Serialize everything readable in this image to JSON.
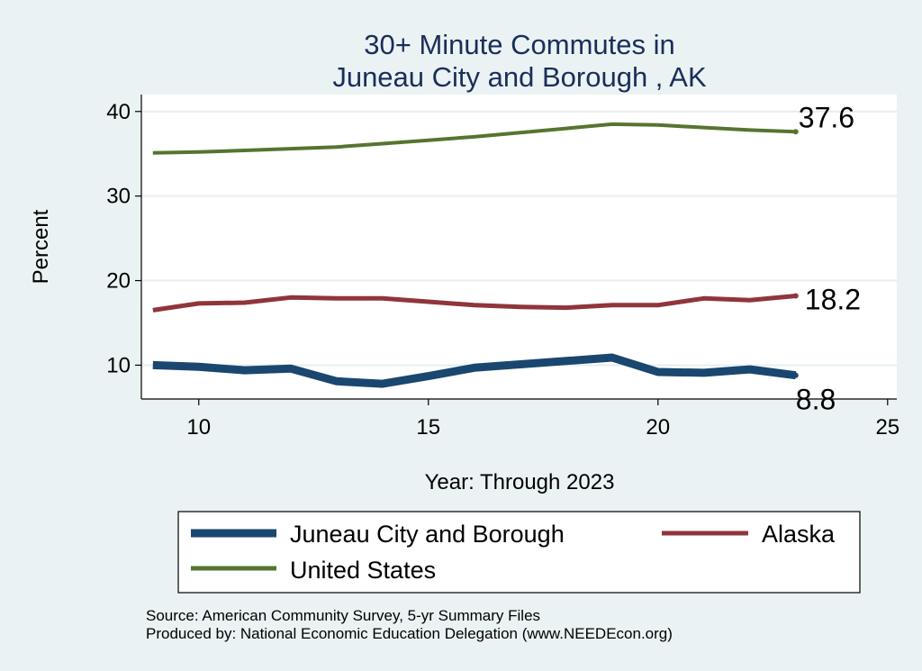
{
  "chart_data": {
    "type": "line",
    "title": [
      "30+ Minute Commutes in",
      "Juneau City and Borough , AK"
    ],
    "xlabel": "Year: Through 2023",
    "ylabel": "Percent",
    "xlim": [
      8.75,
      25.2
    ],
    "ylim": [
      6,
      42
    ],
    "xticks": [
      10,
      15,
      20,
      25
    ],
    "yticks": [
      10,
      20,
      30,
      40
    ],
    "grid": true,
    "x": [
      9,
      10,
      11,
      12,
      13,
      14,
      15,
      16,
      17,
      18,
      19,
      20,
      21,
      22,
      23
    ],
    "series": [
      {
        "name": "Juneau City and Borough",
        "color": "#1a476f",
        "values": [
          10.0,
          9.8,
          9.4,
          9.6,
          8.1,
          7.8,
          8.7,
          9.7,
          10.1,
          10.5,
          10.9,
          9.2,
          9.1,
          9.5,
          8.8
        ],
        "end_label": "8.8"
      },
      {
        "name": "Alaska",
        "color": "#90353b",
        "values": [
          16.5,
          17.3,
          17.4,
          18.0,
          17.9,
          17.9,
          17.5,
          17.1,
          16.9,
          16.8,
          17.1,
          17.1,
          17.9,
          17.7,
          18.2
        ],
        "end_label": "18.2"
      },
      {
        "name": "United States",
        "color": "#55752f",
        "values": [
          35.1,
          35.2,
          35.4,
          35.6,
          35.8,
          36.2,
          36.6,
          37.0,
          37.5,
          38.0,
          38.5,
          38.4,
          38.1,
          37.8,
          37.6
        ],
        "end_label": "37.6"
      }
    ],
    "legend_position": "bottom",
    "notes": [
      "Source: American Community Survey, 5-yr Summary Files",
      "Produced by: National Economic Education Delegation (www.NEEDEcon.org)"
    ]
  }
}
